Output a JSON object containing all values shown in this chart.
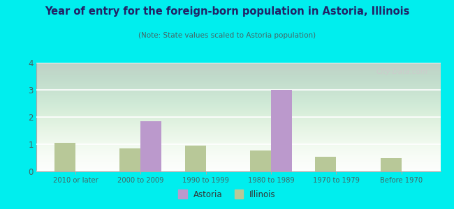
{
  "title": "Year of entry for the foreign-born population in Astoria, Illinois",
  "subtitle": "(Note: State values scaled to Astoria population)",
  "categories": [
    "2010 or later",
    "2000 to 2009",
    "1990 to 1999",
    "1980 to 1989",
    "1970 to 1979",
    "Before 1970"
  ],
  "astoria_values": [
    0,
    1.85,
    0,
    3.0,
    0,
    0
  ],
  "illinois_values": [
    1.05,
    0.85,
    0.95,
    0.78,
    0.55,
    0.5
  ],
  "astoria_color": "#bb99cc",
  "illinois_color": "#b8c898",
  "background_outer": "#00eeee",
  "ylim": [
    0,
    4
  ],
  "yticks": [
    0,
    1,
    2,
    3,
    4
  ],
  "bar_width": 0.32,
  "legend_labels": [
    "Astoria",
    "Illinois"
  ],
  "title_color": "#222266",
  "subtitle_color": "#446666",
  "tick_color": "#446666",
  "watermark": "City-Data.com"
}
